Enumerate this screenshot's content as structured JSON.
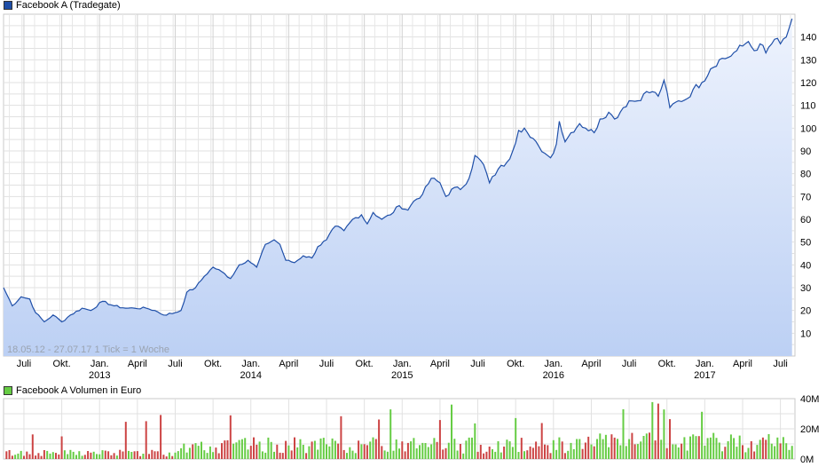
{
  "price_panel": {
    "title": "Facebook A (Tradegate)",
    "line_color": "#1f4fa8",
    "fill_top": "#eef3fd",
    "fill_bottom": "#bcd0f4",
    "range_note": "18.05.12 - 27.07.17   1 Tick = 1 Woche"
  },
  "volume_panel": {
    "title": "Facebook A Volumen in Euro",
    "up_color": "#66cc44",
    "down_color": "#cc4444",
    "y_ticks": [
      "40M",
      "20M",
      "0M"
    ]
  },
  "chart_data": [
    {
      "type": "area",
      "title": "Facebook A (Tradegate)",
      "y_ticks": [
        10,
        20,
        30,
        40,
        50,
        60,
        70,
        80,
        90,
        100,
        110,
        120,
        130,
        140
      ],
      "ylim": [
        0,
        150
      ],
      "x_labels": [
        {
          "label": "Juli",
          "week": 7
        },
        {
          "label": "Okt.",
          "week": 20
        },
        {
          "label": "Jan.",
          "year": "2013",
          "week": 33
        },
        {
          "label": "April",
          "week": 46
        },
        {
          "label": "Juli",
          "week": 59
        },
        {
          "label": "Okt.",
          "week": 72
        },
        {
          "label": "Jan.",
          "year": "2014",
          "week": 85
        },
        {
          "label": "April",
          "week": 98
        },
        {
          "label": "Juli",
          "week": 111
        },
        {
          "label": "Okt.",
          "week": 124
        },
        {
          "label": "Jan.",
          "year": "2015",
          "week": 137
        },
        {
          "label": "April",
          "week": 150
        },
        {
          "label": "Juli",
          "week": 163
        },
        {
          "label": "Okt.",
          "week": 176
        },
        {
          "label": "Jan.",
          "year": "2016",
          "week": 189
        },
        {
          "label": "April",
          "week": 202
        },
        {
          "label": "Juli",
          "week": 215
        },
        {
          "label": "Okt.",
          "week": 228
        },
        {
          "label": "Jan.",
          "year": "2017",
          "week": 241
        },
        {
          "label": "April",
          "week": 254
        },
        {
          "label": "Juli",
          "week": 267
        }
      ],
      "grid": true,
      "series": [
        {
          "name": "Facebook A (Tradegate)",
          "keypoints": [
            [
              0,
              30
            ],
            [
              3,
              22
            ],
            [
              6,
              26
            ],
            [
              9,
              25
            ],
            [
              11,
              19
            ],
            [
              14,
              15
            ],
            [
              17,
              18
            ],
            [
              20,
              15
            ],
            [
              23,
              18
            ],
            [
              27,
              21
            ],
            [
              30,
              20
            ],
            [
              34,
              24
            ],
            [
              38,
              22
            ],
            [
              42,
              21
            ],
            [
              45,
              21
            ],
            [
              49,
              21
            ],
            [
              52,
              20
            ],
            [
              55,
              18
            ],
            [
              59,
              19
            ],
            [
              61,
              20
            ],
            [
              63,
              28
            ],
            [
              66,
              30
            ],
            [
              69,
              35
            ],
            [
              72,
              39
            ],
            [
              75,
              37
            ],
            [
              78,
              34
            ],
            [
              81,
              40
            ],
            [
              84,
              42
            ],
            [
              87,
              39
            ],
            [
              90,
              49
            ],
            [
              93,
              51
            ],
            [
              95,
              49
            ],
            [
              97,
              42
            ],
            [
              100,
              41
            ],
            [
              103,
              44
            ],
            [
              106,
              43
            ],
            [
              108,
              48
            ],
            [
              111,
              51
            ],
            [
              114,
              57
            ],
            [
              117,
              55
            ],
            [
              120,
              60
            ],
            [
              123,
              62
            ],
            [
              125,
              58
            ],
            [
              127,
              63
            ],
            [
              130,
              60
            ],
            [
              133,
              62
            ],
            [
              136,
              66
            ],
            [
              139,
              64
            ],
            [
              141,
              68
            ],
            [
              144,
              71
            ],
            [
              147,
              78
            ],
            [
              150,
              76
            ],
            [
              152,
              70
            ],
            [
              155,
              74
            ],
            [
              157,
              73
            ],
            [
              160,
              78
            ],
            [
              162,
              88
            ],
            [
              165,
              84
            ],
            [
              167,
              76
            ],
            [
              170,
              82
            ],
            [
              173,
              85
            ],
            [
              175,
              90
            ],
            [
              177,
              99
            ],
            [
              179,
              100
            ],
            [
              181,
              96
            ],
            [
              184,
              92
            ],
            [
              186,
              89
            ],
            [
              188,
              87
            ],
            [
              190,
              93
            ],
            [
              191,
              103
            ],
            [
              193,
              94
            ],
            [
              195,
              98
            ],
            [
              198,
              102
            ],
            [
              200,
              100
            ],
            [
              203,
              98
            ],
            [
              205,
              104
            ],
            [
              208,
              107
            ],
            [
              210,
              104
            ],
            [
              213,
              109
            ],
            [
              215,
              112
            ],
            [
              218,
              112
            ],
            [
              220,
              115
            ],
            [
              223,
              116
            ],
            [
              225,
              114
            ],
            [
              227,
              121
            ],
            [
              229,
              109
            ],
            [
              232,
              112
            ],
            [
              235,
              113
            ],
            [
              237,
              117
            ],
            [
              240,
              120
            ],
            [
              243,
              126
            ],
            [
              246,
              130
            ],
            [
              249,
              131
            ],
            [
              252,
              134
            ],
            [
              254,
              136
            ],
            [
              256,
              138
            ],
            [
              258,
              134
            ],
            [
              260,
              137
            ],
            [
              262,
              133
            ],
            [
              265,
              139
            ],
            [
              267,
              137
            ],
            [
              269,
              140
            ],
            [
              271,
              148
            ]
          ]
        }
      ]
    },
    {
      "type": "bar",
      "title": "Facebook A Volumen in Euro",
      "ylim": [
        0,
        40
      ],
      "y_ticks": [
        "40M",
        "20M",
        "0M"
      ],
      "series": [
        {
          "name": "Facebook A Volumen in Euro",
          "unit": "M Euro"
        }
      ],
      "weeks": 272
    }
  ]
}
